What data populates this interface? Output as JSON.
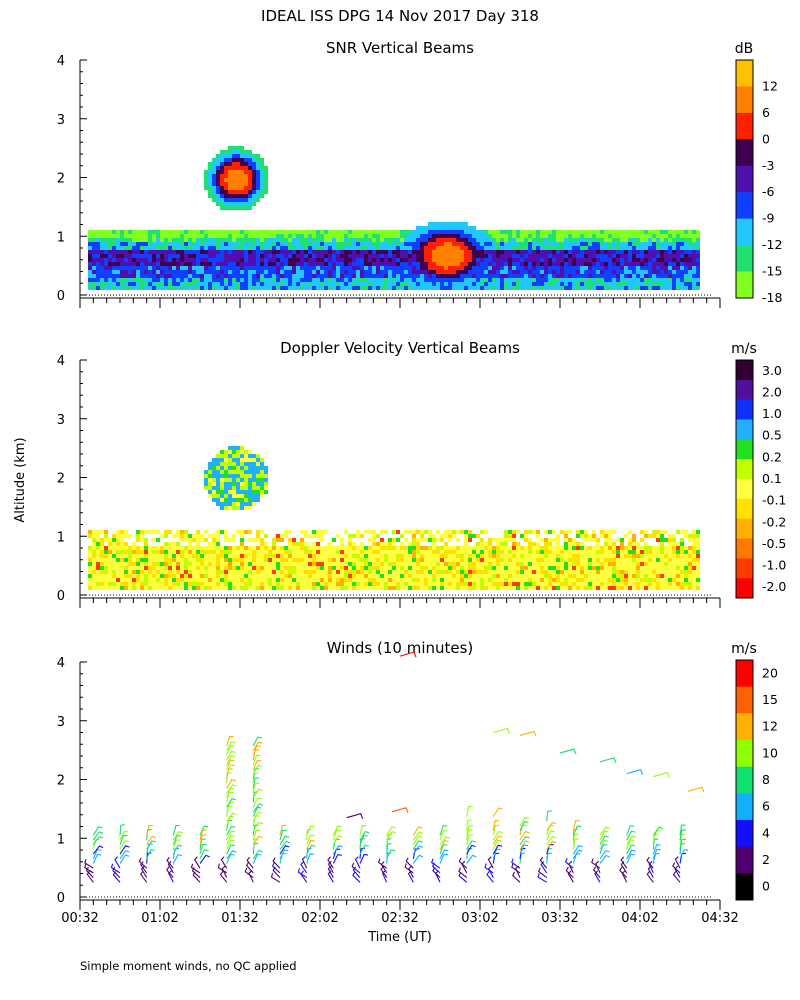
{
  "header": {
    "title": "IDEAL ISS DPG  14 Nov 2017 Day 318"
  },
  "axes": {
    "ylabel": "Altitude (km)",
    "xlabel": "Time (UT)",
    "x_ticks": [
      "00:32",
      "01:02",
      "01:32",
      "02:02",
      "02:32",
      "03:02",
      "03:32",
      "04:02",
      "04:32"
    ],
    "y_ticks": [
      "0",
      "1",
      "2",
      "3",
      "4"
    ]
  },
  "footer": {
    "note": "Simple moment winds, no QC applied"
  },
  "colors": {
    "snr": [
      "#80ff20",
      "#20e070",
      "#20c8ff",
      "#1040ff",
      "#5010b0",
      "#400050",
      "#ff2000",
      "#ff8000",
      "#ffc000"
    ],
    "velocity": [
      "#ff0000",
      "#ff3c00",
      "#ff7800",
      "#ffb000",
      "#ffe000",
      "#ffff40",
      "#c0ff00",
      "#20e020",
      "#20b0ff",
      "#1030ff",
      "#50109a",
      "#300030"
    ],
    "winds": [
      "#000000",
      "#500070",
      "#1010ff",
      "#10b0ff",
      "#10e070",
      "#90ff00",
      "#ffb000",
      "#ff6000",
      "#ff0000"
    ]
  },
  "chart_data": [
    {
      "type": "heatmap",
      "title": "SNR Vertical Beams",
      "unit": "dB",
      "x_range": [
        "00:32",
        "04:32"
      ],
      "ylim": [
        0,
        4
      ],
      "colorbar_ticks": [
        "12",
        "6",
        "0",
        "-3",
        "-6",
        "-9",
        "-12",
        "-15",
        "-18"
      ],
      "features": [
        {
          "time_range": [
            "00:34",
            "04:24"
          ],
          "altitude_km": [
            0.15,
            1.15
          ],
          "snr_db": [
            -18,
            -3
          ]
        },
        {
          "time_range": [
            "01:22",
            "01:42"
          ],
          "altitude_km": [
            1.4,
            2.6
          ],
          "snr_db": [
            -18,
            12
          ]
        },
        {
          "time_range": [
            "02:25",
            "03:00"
          ],
          "altitude_km": [
            0.2,
            1.35
          ],
          "snr_db": [
            -12,
            12
          ]
        }
      ]
    },
    {
      "type": "heatmap",
      "title": "Doppler Velocity Vertical Beams",
      "unit": "m/s",
      "x_range": [
        "00:32",
        "04:32"
      ],
      "ylim": [
        0,
        4
      ],
      "colorbar_ticks": [
        "3.0",
        "2.0",
        "1.0",
        "0.5",
        "0.2",
        "0.1",
        "-0.1",
        "-0.2",
        "-0.5",
        "-1.0",
        "-2.0"
      ],
      "features": [
        {
          "time_range": [
            "00:34",
            "04:24"
          ],
          "altitude_km": [
            0.15,
            1.1
          ],
          "velocity_ms": [
            -0.2,
            0.1
          ]
        },
        {
          "time_range": [
            "01:22",
            "01:42"
          ],
          "altitude_km": [
            1.4,
            2.6
          ],
          "velocity_ms": [
            0.1,
            0.5
          ]
        }
      ]
    },
    {
      "type": "wind-barbs",
      "title": "Winds (10 minutes)",
      "unit": "m/s",
      "x_range": [
        "00:32",
        "04:32"
      ],
      "ylim": [
        0,
        4
      ],
      "colorbar_ticks": [
        "20",
        "15",
        "12",
        "10",
        "8",
        "6",
        "4",
        "2",
        "0"
      ],
      "interval_min": 10,
      "speed_ms_range": [
        0,
        20
      ]
    }
  ]
}
